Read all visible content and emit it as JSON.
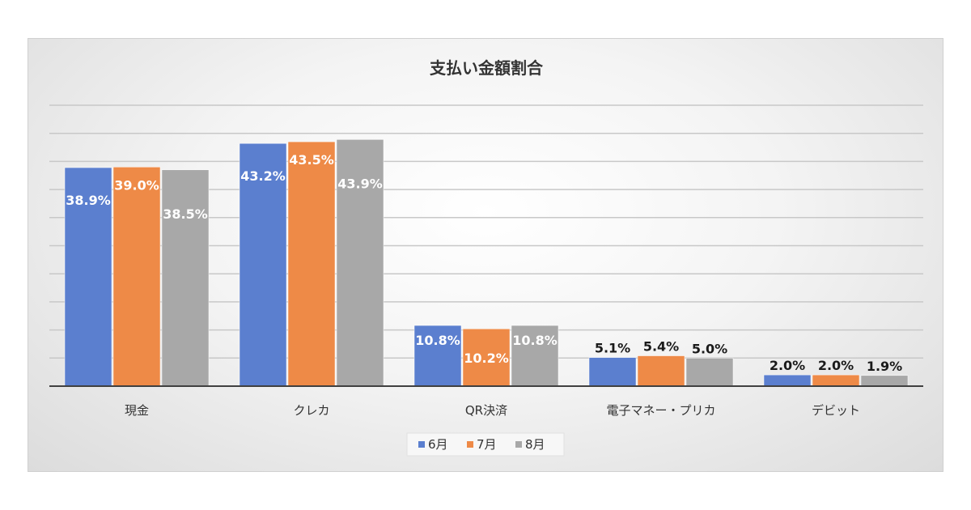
{
  "chart_data": {
    "type": "bar",
    "title": "支払い金額割合",
    "categories": [
      "現金",
      "クレカ",
      "QR決済",
      "電子マネー・プリカ",
      "デビット"
    ],
    "series": [
      {
        "name": "6月",
        "color": "#5b7fcf",
        "values": [
          38.9,
          43.2,
          10.8,
          5.1,
          2.0
        ],
        "labels": [
          "38.9%",
          "43.2%",
          "10.8%",
          "5.1%",
          "2.0%"
        ]
      },
      {
        "name": "7月",
        "color": "#ee8a47",
        "values": [
          39.0,
          43.5,
          10.2,
          5.4,
          2.0
        ],
        "labels": [
          "39.0%",
          "43.5%",
          "10.2%",
          "5.4%",
          "2.0%"
        ]
      },
      {
        "name": "8月",
        "color": "#a8a8a8",
        "values": [
          38.5,
          43.9,
          10.8,
          5.0,
          1.9
        ],
        "labels": [
          "38.5%",
          "43.9%",
          "10.8%",
          "5.0%",
          "1.9%"
        ]
      }
    ],
    "ylim": [
      0,
      50
    ],
    "grid": true,
    "legend": "bottom"
  }
}
